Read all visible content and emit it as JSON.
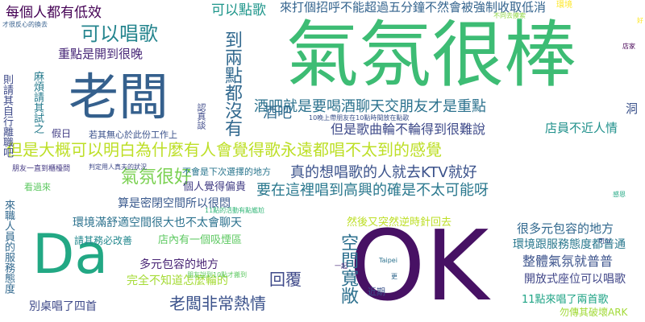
{
  "words": [
    {
      "text": "氣氛很棒",
      "color": "#3dbc74"
    },
    {
      "text": "老闆",
      "color": "#35608d"
    },
    {
      "text": "OK",
      "color": "#471164"
    },
    {
      "text": "Da",
      "color": "#22a884"
    },
    {
      "text": "但是大概可以明白為什麼有人會覺得歌永遠都唱不太到的感覺",
      "color": "#bddf26"
    },
    {
      "text": "真的想唱歌的人就去KTV就好",
      "color": "#3b528b"
    },
    {
      "text": "要在這裡唱到高興的確是不太可能呀",
      "color": "#2a788e"
    },
    {
      "text": "酒吧就是要喝酒聊天交朋友才是重點",
      "color": "#2c728e"
    },
    {
      "text": "來打個招呼不能超過五分鐘不然會被強制收取低消",
      "color": "#33638d"
    },
    {
      "text": "可以唱歌",
      "color": "#25858e"
    },
    {
      "text": "氣氛很好",
      "color": "#7ad151"
    },
    {
      "text": "老闆非常熱情",
      "color": "#3b528b"
    },
    {
      "text": "空間寬敞",
      "color": "#2d708e"
    },
    {
      "text": "回覆",
      "color": "#3e4989"
    },
    {
      "text": "酒吧",
      "color": "#2f6b8e"
    },
    {
      "text": "每個人都有低效",
      "color": "#440154"
    },
    {
      "text": "重點是開到很晚",
      "color": "#482878"
    },
    {
      "text": "可以點歌",
      "color": "#1f968b"
    },
    {
      "text": "但是歌曲輪不輪得到很難說",
      "color": "#3e4a89"
    },
    {
      "text": "店員不近人情",
      "color": "#21918c"
    },
    {
      "text": "很多元包容的地方",
      "color": "#31688e"
    },
    {
      "text": "環境跟服務態度都普通",
      "color": "#2a788e"
    },
    {
      "text": "整體氣氛就普普",
      "color": "#3b528b"
    },
    {
      "text": "開放式座位可以唱歌",
      "color": "#404688"
    },
    {
      "text": "11點來唱了兩首歌",
      "color": "#20a486"
    },
    {
      "text": "勿傳其破壞ARK",
      "color": "#a2da37"
    },
    {
      "text": "多元包容的地方",
      "color": "#482475"
    },
    {
      "text": "完全不知道怎麼輪的",
      "color": "#a5db36"
    },
    {
      "text": "別桌唱了四首",
      "color": "#3e4989"
    },
    {
      "text": "環境滿舒適空間很大也不太會聊天",
      "color": "#2c728e"
    },
    {
      "text": "算是密閉空間所以很悶",
      "color": "#38588c"
    },
    {
      "text": "個人覺得偏貴",
      "color": "#433e85"
    },
    {
      "text": "不會是下次選擇的地方",
      "color": "#2a768e"
    },
    {
      "text": "店內有一個吸煙區",
      "color": "#5ec962"
    },
    {
      "text": "請其務必改善",
      "color": "#23888e"
    },
    {
      "text": "然後又突然逆時針回去",
      "color": "#bddf26"
    },
    {
      "text": "到兩點都沒有",
      "color": "#31688e"
    },
    {
      "text": "假日",
      "color": "#433e85"
    },
    {
      "text": "若其無心於此份工作上",
      "color": "#3b528b"
    },
    {
      "text": "看過來",
      "color": "#5ec962"
    },
    {
      "text": "朋友一直到櫃檯問",
      "color": "#443983"
    },
    {
      "text": "近期",
      "color": "#3b528b"
    },
    {
      "text": "環境",
      "color": "#fde725"
    },
    {
      "text": "來職人員的服務態度",
      "color": "#31688e"
    },
    {
      "text": "則請其自行離職吧",
      "color": "#3e4a89"
    },
    {
      "text": "麻煩請其試之",
      "color": "#287c8e"
    },
    {
      "text": "感恩",
      "color": "#22a884"
    },
    {
      "text": "認真談",
      "color": "#3e4a89"
    },
    {
      "text": "洞",
      "color": "#3b528b"
    },
    {
      "text": "Taipei",
      "color": "#2c728e"
    },
    {
      "text": "更",
      "color": "#31688e"
    },
    {
      "text": "一起",
      "color": "#482878"
    },
    {
      "text": "才很反心的換去",
      "color": "#355f8d"
    },
    {
      "text": "10晚上帶朋友在10點時間放在點歌",
      "color": "#3b528b"
    },
    {
      "text": "不同去摸索",
      "color": "#90d743"
    },
    {
      "text": "11點的活動有點尷尬",
      "color": "#35b779"
    },
    {
      "text": "判定用人真夫的狀況",
      "color": "#3e4989"
    },
    {
      "text": "朋友說到10點才搬到",
      "color": "#5ec962"
    },
    {
      "text": "可以",
      "color": "#404688"
    },
    {
      "text": "好",
      "color": "#fde725"
    },
    {
      "text": "店家",
      "color": "#440154"
    }
  ]
}
